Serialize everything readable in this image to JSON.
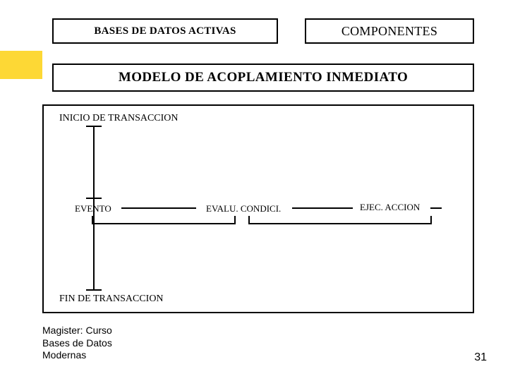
{
  "header": {
    "left_title": "BASES DE DATOS ACTIVAS",
    "right_title": "COMPONENTES"
  },
  "subtitle": "MODELO DE ACOPLAMIENTO INMEDIATO",
  "diagram": {
    "type": "flowchart",
    "background_color": "#ffffff",
    "border_color": "#000000",
    "line_color": "#000000",
    "line_width": 2,
    "accent_bar_color": "#fdd835",
    "font_family": "Times New Roman",
    "label_fontsize": 13,
    "heading_fontsize": 14,
    "nodes": {
      "inicio": "INICIO DE TRANSACCION",
      "evento": "EVENTO",
      "evalu": "EVALU. CONDICI.",
      "ejec": "EJEC. ACCION",
      "fin": "FIN DE  TRANSACCION"
    },
    "edges": [
      {
        "from": "inicio",
        "to": "evento",
        "style": "vertical"
      },
      {
        "from": "evento",
        "to": "evalu",
        "style": "horizontal-with-bracket"
      },
      {
        "from": "evalu",
        "to": "ejec",
        "style": "horizontal-with-bracket"
      },
      {
        "from": "evento",
        "to": "fin",
        "style": "vertical"
      }
    ]
  },
  "footer": {
    "line1": "Magister: Curso",
    "line2": "Bases de Datos",
    "line3": "Modernas",
    "page_number": "31"
  },
  "colors": {
    "text": "#000000",
    "background": "#ffffff",
    "border": "#000000",
    "accent": "#fdd835"
  }
}
